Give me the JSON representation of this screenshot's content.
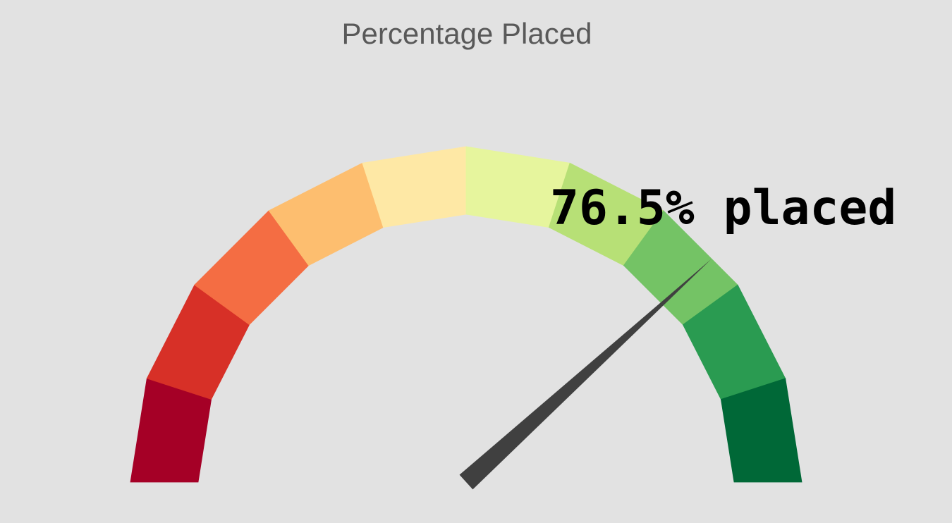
{
  "chart_data": {
    "type": "gauge",
    "title": "Percentage Placed",
    "value": 76.5,
    "range": [
      0,
      100
    ],
    "readout_label": "76.5% placed",
    "bands": [
      {
        "from": 0,
        "to": 10,
        "color": "#a50026"
      },
      {
        "from": 10,
        "to": 20,
        "color": "#d73027"
      },
      {
        "from": 20,
        "to": 30,
        "color": "#f46d43"
      },
      {
        "from": 30,
        "to": 40,
        "color": "#fdbe6f"
      },
      {
        "from": 40,
        "to": 50,
        "color": "#fee8a5"
      },
      {
        "from": 50,
        "to": 60,
        "color": "#e6f59d"
      },
      {
        "from": 60,
        "to": 70,
        "color": "#b7e076"
      },
      {
        "from": 70,
        "to": 80,
        "color": "#74c365"
      },
      {
        "from": 80,
        "to": 90,
        "color": "#2a9b51"
      },
      {
        "from": 90,
        "to": 100,
        "color": "#006837"
      }
    ],
    "needle_color": "#404040"
  }
}
